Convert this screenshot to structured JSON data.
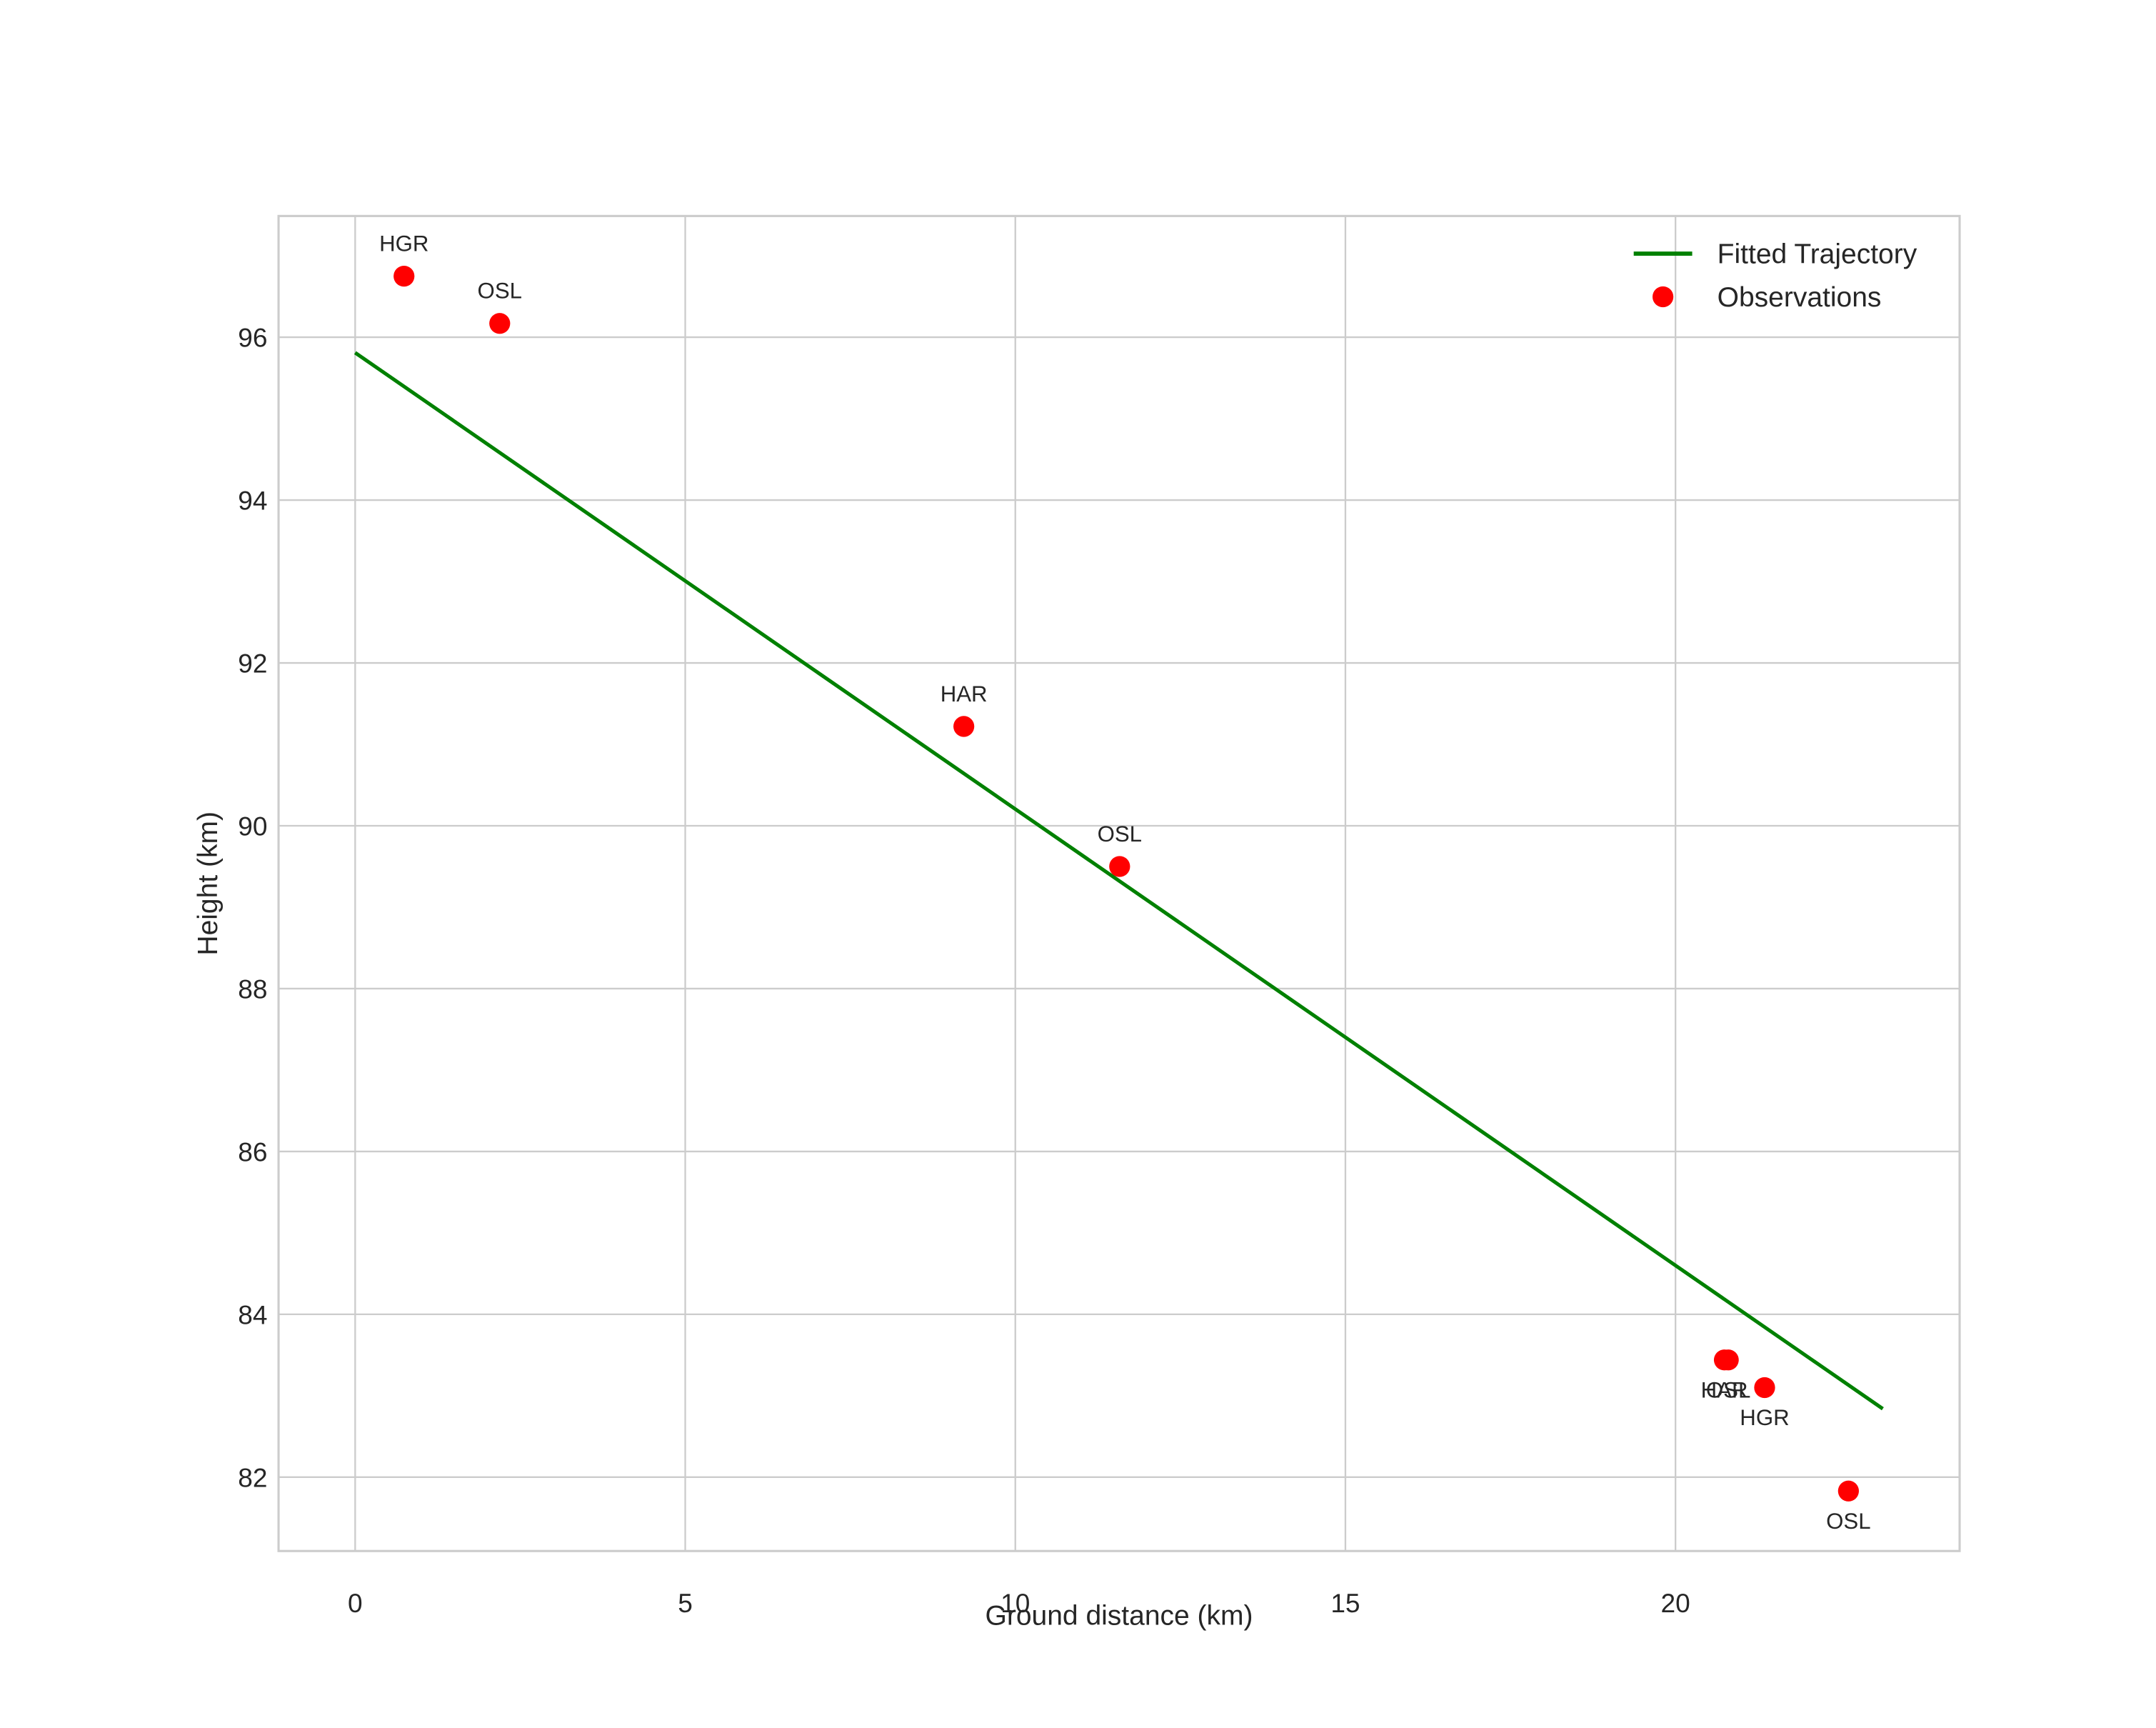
{
  "chart_data": {
    "type": "scatter",
    "title": "",
    "xlabel": "Ground distance (km)",
    "ylabel": "Height (km)",
    "xlim": [
      -1.15,
      24.3
    ],
    "ylim": [
      81.1,
      97.5
    ],
    "xticks": [
      0,
      5,
      10,
      15,
      20
    ],
    "yticks": [
      82,
      84,
      86,
      88,
      90,
      92,
      94,
      96
    ],
    "grid": true,
    "legend_position": "upper right",
    "series": [
      {
        "name": "Fitted Trajectory",
        "type": "line",
        "color": "#008000",
        "x": [
          0,
          23.14
        ],
        "y": [
          95.81,
          82.84
        ]
      },
      {
        "name": "Observations",
        "type": "scatter",
        "color": "#ff0000",
        "points": [
          {
            "x": 0.74,
            "y": 96.75,
            "label": "HGR",
            "label_pos": "above"
          },
          {
            "x": 2.19,
            "y": 96.17,
            "label": "OSL",
            "label_pos": "above"
          },
          {
            "x": 9.22,
            "y": 91.22,
            "label": "HAR",
            "label_pos": "above"
          },
          {
            "x": 11.58,
            "y": 89.5,
            "label": "OSL",
            "label_pos": "above"
          },
          {
            "x": 20.74,
            "y": 83.44,
            "label": "HAR",
            "label_pos": "below"
          },
          {
            "x": 20.8,
            "y": 83.44,
            "label": "OSL",
            "label_pos": "below"
          },
          {
            "x": 21.35,
            "y": 83.1,
            "label": "HGR",
            "label_pos": "below"
          },
          {
            "x": 22.62,
            "y": 81.83,
            "label": "OSL",
            "label_pos": "below"
          }
        ]
      }
    ]
  },
  "legend": {
    "items": [
      {
        "label": "Fitted Trajectory",
        "marker": "line",
        "color": "#008000"
      },
      {
        "label": "Observations",
        "marker": "circle",
        "color": "#ff0000"
      }
    ]
  },
  "axes": {
    "xlabel": "Ground distance (km)",
    "ylabel": "Height (km)"
  }
}
